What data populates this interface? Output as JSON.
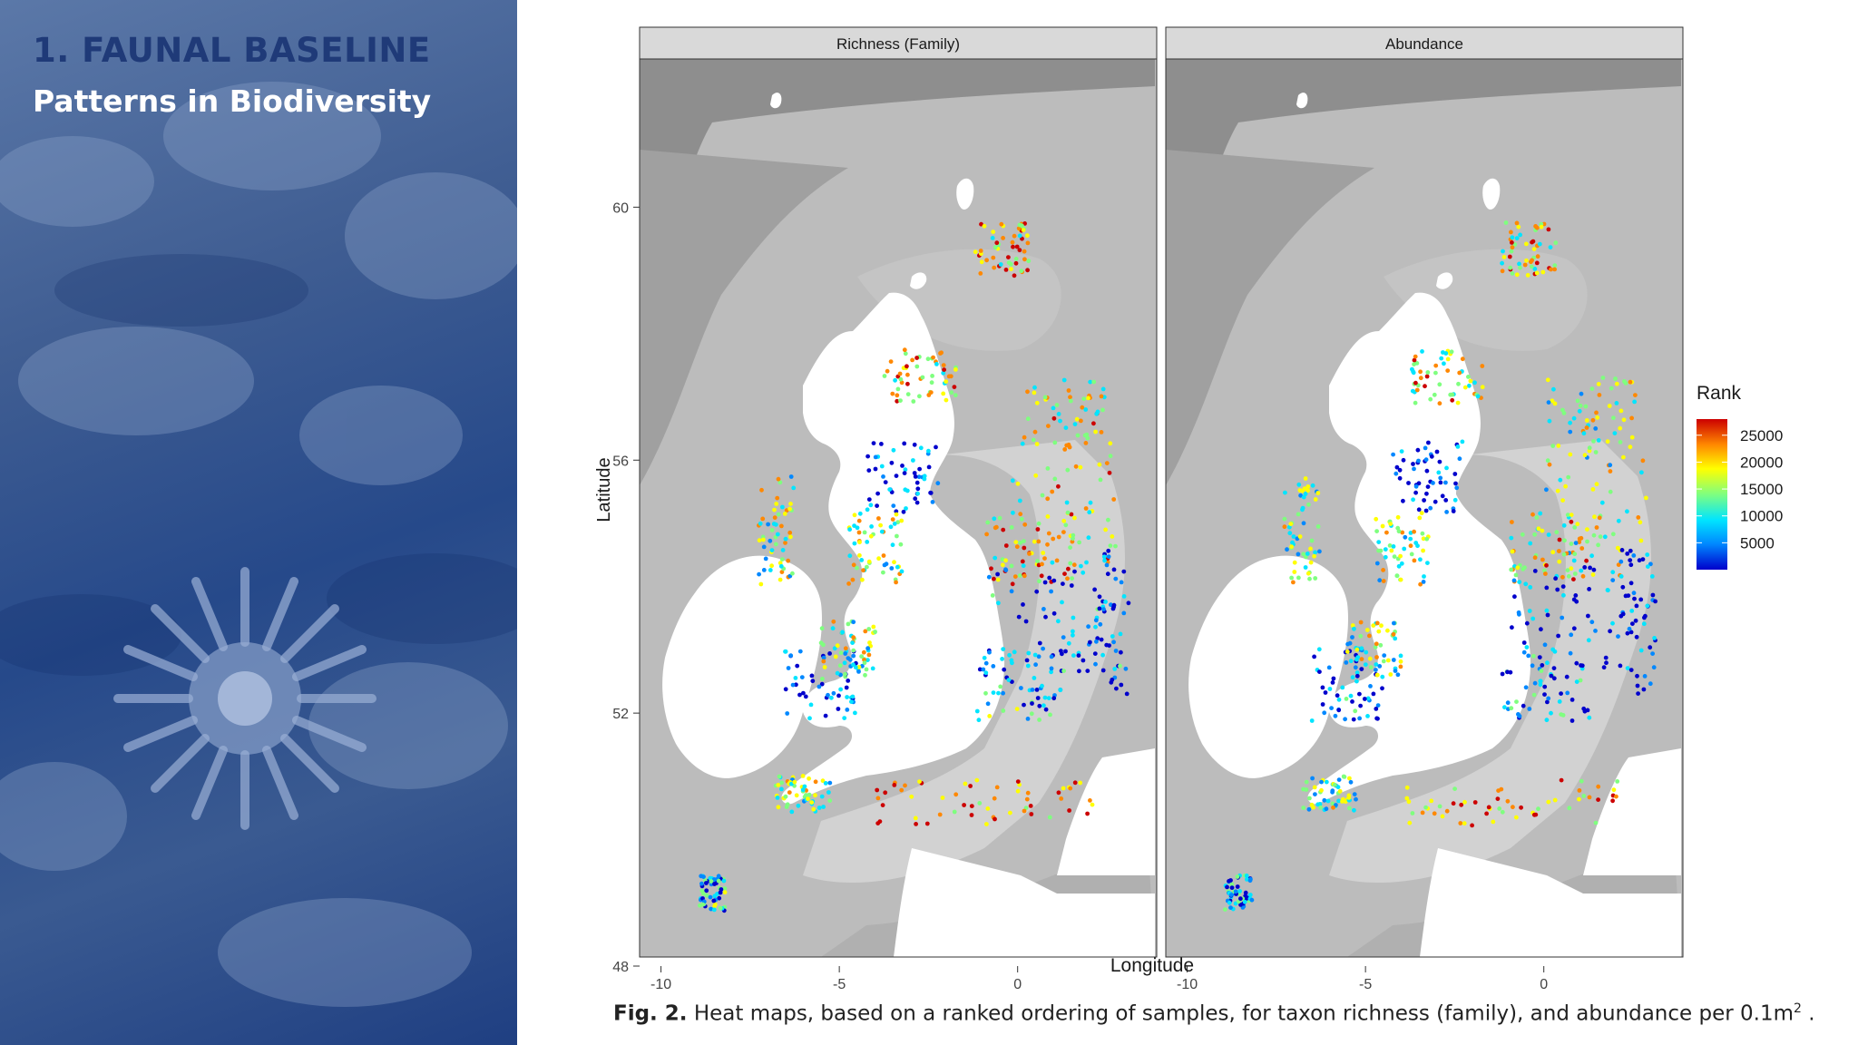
{
  "slide": {
    "title": "1. FAUNAL BASELINE",
    "subtitle": "Patterns in Biodiversity"
  },
  "caption": {
    "label": "Fig. 2.",
    "text": "Heat maps, based on a ranked ordering of samples, for taxon richness (family), and abundance per 0.1m",
    "superscript": "2",
    "end": " ."
  },
  "chart_data": {
    "type": "heatmap",
    "panels": [
      {
        "title": "Richness (Family)"
      },
      {
        "title": "Abundance"
      }
    ],
    "xlabel": "Longitude",
    "ylabel": "Latitude",
    "xlim": [
      -10.6,
      3.9
    ],
    "ylim": [
      48,
      62.2
    ],
    "x_ticks": [
      -10,
      -5,
      0
    ],
    "y_ticks": [
      48,
      52,
      56,
      60
    ],
    "grid": false,
    "legend": {
      "title": "Rank",
      "position": "right",
      "ticks": [
        25000,
        20000,
        15000,
        10000,
        5000
      ],
      "range": [
        0,
        28000
      ],
      "colors": [
        "#0000cc",
        "#0088ff",
        "#00e5ff",
        "#7fff7f",
        "#ffff00",
        "#ff8800",
        "#cc0000"
      ]
    },
    "colors": {
      "land": "#ffffff",
      "sea_shallow": "#c8c8c8",
      "sea_mid": "#b4b4b4",
      "sea_deep": "#9c9c9c",
      "strip": "#d9d9d9"
    }
  }
}
